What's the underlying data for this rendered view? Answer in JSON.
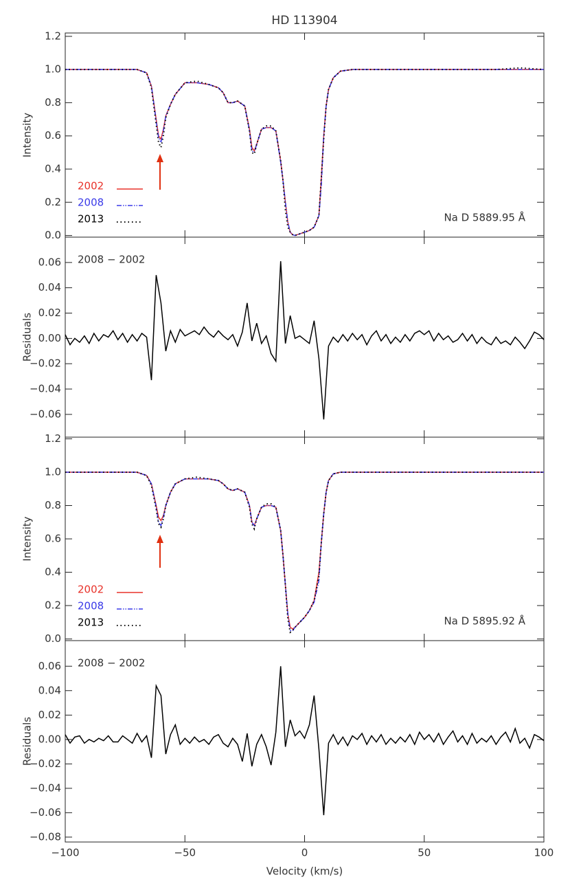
{
  "chart_data": [
    {
      "type": "line",
      "title": "HD 113904",
      "ylabel": "Intensity",
      "annotation": "Na D 5889.95 Å",
      "legend": "lower left",
      "xlim": [
        -100,
        100
      ],
      "xticks": [
        -100,
        -50,
        0,
        50,
        100
      ],
      "ylim": [
        -0.01,
        1.22
      ],
      "yticks": [
        {
          "value": 0,
          "label": "0.0"
        },
        0.2,
        0.4,
        0.6,
        0.8,
        {
          "value": 1,
          "label": "1.0"
        },
        1.2
      ],
      "x": [
        -100,
        -90,
        -80,
        -70,
        -66,
        -64,
        -62,
        -61,
        -60,
        -59,
        -58,
        -56,
        -54,
        -50,
        -45,
        -40,
        -36,
        -34,
        -32,
        -30,
        -28,
        -25,
        -23,
        -22,
        -21,
        -20,
        -18,
        -16,
        -14,
        -12,
        -10,
        -9,
        -8,
        -7,
        -6,
        -5,
        -4,
        -2,
        0,
        2,
        4,
        6,
        7,
        8,
        9,
        10,
        12,
        15,
        20,
        30,
        40,
        50,
        60,
        70,
        80,
        90,
        100
      ],
      "series": [
        {
          "name": "2002",
          "color": "#e8322a",
          "style": "solid",
          "values": [
            1,
            1,
            1,
            1,
            0.98,
            0.9,
            0.7,
            0.6,
            0.58,
            0.64,
            0.72,
            0.79,
            0.85,
            0.92,
            0.92,
            0.91,
            0.89,
            0.86,
            0.8,
            0.8,
            0.81,
            0.78,
            0.64,
            0.53,
            0.51,
            0.55,
            0.64,
            0.65,
            0.65,
            0.63,
            0.45,
            0.33,
            0.2,
            0.08,
            0.02,
            0.005,
            0,
            0.01,
            0.02,
            0.03,
            0.05,
            0.12,
            0.35,
            0.6,
            0.78,
            0.88,
            0.95,
            0.99,
            1,
            1,
            1,
            1,
            1,
            1,
            1,
            1,
            1
          ]
        },
        {
          "name": "2008",
          "color": "#3a3ae8",
          "style": "dashdot",
          "values": [
            1,
            1,
            1,
            1,
            0.98,
            0.9,
            0.69,
            0.59,
            0.56,
            0.63,
            0.72,
            0.79,
            0.85,
            0.92,
            0.92,
            0.91,
            0.89,
            0.86,
            0.8,
            0.8,
            0.81,
            0.78,
            0.63,
            0.51,
            0.5,
            0.55,
            0.64,
            0.65,
            0.65,
            0.63,
            0.44,
            0.33,
            0.2,
            0.08,
            0.02,
            0.005,
            0,
            0.01,
            0.02,
            0.03,
            0.05,
            0.12,
            0.3,
            0.6,
            0.78,
            0.88,
            0.95,
            0.99,
            1,
            1,
            1,
            1,
            1,
            1,
            1,
            1,
            1
          ]
        },
        {
          "name": "2013",
          "color": "#000000",
          "style": "dotted",
          "values": [
            1,
            1,
            1,
            1,
            0.98,
            0.89,
            0.67,
            0.56,
            0.53,
            0.6,
            0.71,
            0.79,
            0.85,
            0.92,
            0.93,
            0.91,
            0.89,
            0.86,
            0.8,
            0.8,
            0.81,
            0.78,
            0.63,
            0.5,
            0.49,
            0.55,
            0.64,
            0.66,
            0.66,
            0.63,
            0.45,
            0.33,
            0.15,
            0.05,
            0.02,
            0.005,
            0,
            0.01,
            0.02,
            0.03,
            0.05,
            0.12,
            0.35,
            0.58,
            0.78,
            0.88,
            0.95,
            0.99,
            1,
            1,
            1,
            1,
            1,
            1,
            1,
            1.01,
            1
          ]
        }
      ]
    },
    {
      "type": "line",
      "ylabel": "Residuals",
      "annotation": "2008 − 2002",
      "xlim": [
        -100,
        100
      ],
      "xticks": [
        -100,
        -50,
        0,
        50,
        100
      ],
      "ylim": [
        -0.078,
        0.08
      ],
      "yticks": [
        {
          "value": -0.06,
          "label": "−0.06"
        },
        {
          "value": -0.04,
          "label": "−0.04"
        },
        {
          "value": -0.02,
          "label": "−0.02"
        },
        {
          "value": 0,
          "label": "0.00"
        },
        0.02,
        0.04,
        0.06
      ],
      "x": [
        -100,
        -98,
        -96,
        -94,
        -92,
        -90,
        -88,
        -86,
        -84,
        -82,
        -80,
        -78,
        -76,
        -74,
        -72,
        -70,
        -68,
        -66,
        -64,
        -62,
        -60,
        -58,
        -56,
        -54,
        -52,
        -50,
        -48,
        -46,
        -44,
        -42,
        -40,
        -38,
        -36,
        -34,
        -32,
        -30,
        -28,
        -26,
        -24,
        -22,
        -20,
        -18,
        -16,
        -14,
        -12,
        -10,
        -8,
        -6,
        -4,
        -2,
        0,
        2,
        4,
        6,
        8,
        10,
        12,
        14,
        16,
        18,
        20,
        22,
        24,
        26,
        28,
        30,
        32,
        34,
        36,
        38,
        40,
        42,
        44,
        46,
        48,
        50,
        52,
        54,
        56,
        58,
        60,
        62,
        64,
        66,
        68,
        70,
        72,
        74,
        76,
        78,
        80,
        82,
        84,
        86,
        88,
        90,
        92,
        94,
        96,
        98,
        100
      ],
      "series": [
        {
          "color": "#000000",
          "style": "solid",
          "values": [
            0.003,
            -0.005,
            0,
            -0.003,
            0.002,
            -0.004,
            0.004,
            -0.002,
            0.003,
            0.001,
            0.006,
            -0.001,
            0.004,
            -0.003,
            0.003,
            -0.002,
            0.004,
            0.001,
            -0.033,
            0.05,
            0.028,
            -0.01,
            0.006,
            -0.003,
            0.007,
            0.002,
            0.004,
            0.006,
            0.003,
            0.009,
            0.004,
            0.001,
            0.006,
            0.002,
            -0.001,
            0.003,
            -0.006,
            0.005,
            0.028,
            -0.002,
            0.012,
            -0.004,
            0.002,
            -0.012,
            -0.018,
            0.061,
            -0.004,
            0.018,
            0,
            0.002,
            -0.001,
            -0.004,
            0.014,
            -0.016,
            -0.064,
            -0.006,
            0.001,
            -0.003,
            0.003,
            -0.002,
            0.004,
            -0.001,
            0.003,
            -0.005,
            0.002,
            0.006,
            -0.002,
            0.003,
            -0.004,
            0.001,
            -0.003,
            0.003,
            -0.002,
            0.004,
            0.006,
            0.003,
            0.006,
            -0.002,
            0.004,
            -0.001,
            0.002,
            -0.003,
            -0.001,
            0.004,
            -0.002,
            0.003,
            -0.004,
            0.001,
            -0.003,
            -0.005,
            0.001,
            -0.004,
            -0.002,
            -0.005,
            0.001,
            -0.003,
            -0.008,
            -0.002,
            0.005,
            0.003,
            -0.001
          ]
        }
      ]
    },
    {
      "type": "line",
      "ylabel": "Intensity",
      "annotation": "Na D 5895.92 Å",
      "legend": "lower left",
      "xlim": [
        -100,
        100
      ],
      "xticks": [
        -100,
        -50,
        0,
        50,
        100
      ],
      "ylim": [
        -0.01,
        1.21
      ],
      "yticks": [
        {
          "value": 0,
          "label": "0.0"
        },
        0.2,
        0.4,
        0.6,
        0.8,
        {
          "value": 1,
          "label": "1.0"
        },
        1.2
      ],
      "x": [
        -100,
        -90,
        -80,
        -70,
        -66,
        -64,
        -62,
        -61,
        -60,
        -59,
        -58,
        -56,
        -54,
        -50,
        -45,
        -40,
        -36,
        -34,
        -32,
        -30,
        -28,
        -25,
        -23,
        -22,
        -21,
        -20,
        -18,
        -16,
        -14,
        -12,
        -10,
        -9,
        -8,
        -7,
        -6,
        -5,
        -4,
        -2,
        0,
        2,
        4,
        6,
        7,
        8,
        9,
        10,
        12,
        15,
        20,
        30,
        40,
        50,
        60,
        70,
        80,
        90,
        100
      ],
      "series": [
        {
          "name": "2002",
          "color": "#e8322a",
          "style": "solid",
          "values": [
            1,
            1,
            1,
            1,
            0.98,
            0.93,
            0.8,
            0.73,
            0.71,
            0.74,
            0.8,
            0.88,
            0.93,
            0.96,
            0.96,
            0.96,
            0.95,
            0.93,
            0.9,
            0.89,
            0.9,
            0.88,
            0.8,
            0.7,
            0.68,
            0.72,
            0.79,
            0.8,
            0.8,
            0.79,
            0.65,
            0.5,
            0.32,
            0.15,
            0.07,
            0.06,
            0.07,
            0.1,
            0.13,
            0.17,
            0.23,
            0.4,
            0.58,
            0.75,
            0.88,
            0.95,
            0.99,
            1,
            1,
            1,
            1,
            1,
            1,
            1,
            1,
            1,
            1
          ]
        },
        {
          "name": "2008",
          "color": "#3a3ae8",
          "style": "dashdot",
          "values": [
            1,
            1,
            1,
            1,
            0.98,
            0.93,
            0.79,
            0.7,
            0.68,
            0.73,
            0.8,
            0.88,
            0.93,
            0.96,
            0.96,
            0.96,
            0.95,
            0.93,
            0.9,
            0.89,
            0.9,
            0.88,
            0.8,
            0.7,
            0.68,
            0.72,
            0.79,
            0.8,
            0.8,
            0.79,
            0.65,
            0.5,
            0.32,
            0.15,
            0.05,
            0.05,
            0.07,
            0.1,
            0.13,
            0.17,
            0.22,
            0.35,
            0.58,
            0.75,
            0.88,
            0.95,
            0.99,
            1,
            1,
            1,
            1,
            1,
            1,
            1,
            1,
            1,
            1
          ]
        },
        {
          "name": "2013",
          "color": "#000000",
          "style": "dotted",
          "values": [
            1,
            1,
            1,
            1,
            0.98,
            0.92,
            0.78,
            0.69,
            0.67,
            0.72,
            0.8,
            0.88,
            0.93,
            0.96,
            0.97,
            0.96,
            0.95,
            0.93,
            0.9,
            0.89,
            0.9,
            0.88,
            0.79,
            0.69,
            0.66,
            0.72,
            0.79,
            0.81,
            0.81,
            0.79,
            0.65,
            0.5,
            0.32,
            0.12,
            0.04,
            0.05,
            0.07,
            0.1,
            0.13,
            0.17,
            0.23,
            0.38,
            0.58,
            0.75,
            0.88,
            0.95,
            0.99,
            1,
            1,
            1,
            1,
            1,
            1,
            1,
            1,
            1,
            1
          ]
        }
      ]
    },
    {
      "type": "line",
      "ylabel": "Residuals",
      "annotation": "2008 − 2002",
      "xlabel": "Velocity (km/s)",
      "xlim": [
        -100,
        100
      ],
      "xticks": [
        {
          "value": -100,
          "label": "−100"
        },
        {
          "value": -50,
          "label": "−50"
        },
        0,
        50,
        100
      ],
      "ylim": [
        -0.084,
        0.081
      ],
      "yticks": [
        {
          "value": -0.08,
          "label": "−0.08"
        },
        {
          "value": -0.06,
          "label": "−0.06"
        },
        {
          "value": -0.04,
          "label": "−0.04"
        },
        {
          "value": -0.02,
          "label": "−0.02"
        },
        {
          "value": 0,
          "label": "0.00"
        },
        0.02,
        0.04,
        0.06
      ],
      "x": [
        -100,
        -98,
        -96,
        -94,
        -92,
        -90,
        -88,
        -86,
        -84,
        -82,
        -80,
        -78,
        -76,
        -74,
        -72,
        -70,
        -68,
        -66,
        -64,
        -62,
        -60,
        -58,
        -56,
        -54,
        -52,
        -50,
        -48,
        -46,
        -44,
        -42,
        -40,
        -38,
        -36,
        -34,
        -32,
        -30,
        -28,
        -26,
        -24,
        -22,
        -20,
        -18,
        -16,
        -14,
        -12,
        -10,
        -8,
        -6,
        -4,
        -2,
        0,
        2,
        4,
        6,
        8,
        10,
        12,
        14,
        16,
        18,
        20,
        22,
        24,
        26,
        28,
        30,
        32,
        34,
        36,
        38,
        40,
        42,
        44,
        46,
        48,
        50,
        52,
        54,
        56,
        58,
        60,
        62,
        64,
        66,
        68,
        70,
        72,
        74,
        76,
        78,
        80,
        82,
        84,
        86,
        88,
        90,
        92,
        94,
        96,
        98,
        100
      ],
      "series": [
        {
          "color": "#000000",
          "style": "solid",
          "values": [
            0.004,
            -0.003,
            0.002,
            0.003,
            -0.003,
            0,
            -0.002,
            0.001,
            -0.001,
            0.003,
            -0.002,
            -0.002,
            0.003,
            0,
            -0.003,
            0.005,
            -0.002,
            0.003,
            -0.015,
            0.044,
            0.036,
            -0.012,
            0.004,
            0.012,
            -0.004,
            0.001,
            -0.003,
            0.002,
            -0.002,
            0,
            -0.004,
            0.002,
            0.004,
            -0.003,
            -0.006,
            0.001,
            -0.004,
            -0.018,
            0.005,
            -0.022,
            -0.004,
            0.004,
            -0.006,
            -0.021,
            0.006,
            0.06,
            -0.006,
            0.016,
            0.003,
            0.007,
            0.001,
            0.012,
            0.036,
            -0.008,
            -0.062,
            -0.003,
            0.004,
            -0.004,
            0.002,
            -0.005,
            0.003,
            0,
            0.005,
            -0.004,
            0.003,
            -0.002,
            0.004,
            -0.004,
            0.001,
            -0.003,
            0.002,
            -0.002,
            0.004,
            -0.004,
            0.006,
            0,
            0.004,
            -0.002,
            0.005,
            -0.004,
            0.002,
            0.007,
            -0.002,
            0.003,
            -0.004,
            0.005,
            -0.003,
            0.001,
            -0.002,
            0.003,
            -0.004,
            0.002,
            0.006,
            -0.002,
            0.009,
            -0.003,
            0.001,
            -0.007,
            0.004,
            0.002,
            -0.001
          ]
        }
      ]
    }
  ]
}
